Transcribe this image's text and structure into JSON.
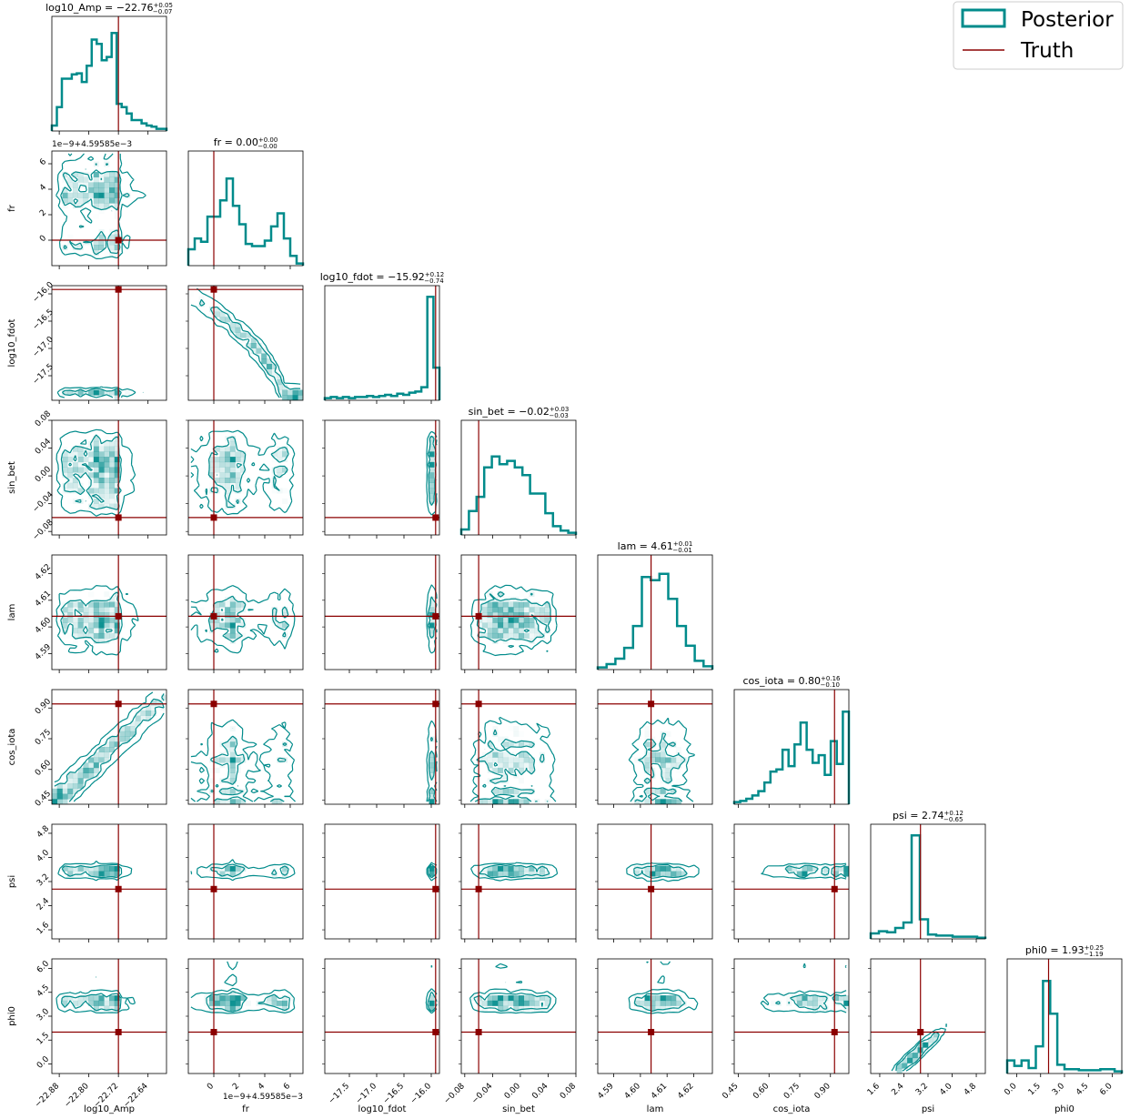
{
  "chart_data": {
    "type": "corner",
    "colors": {
      "posterior": "#008b8b",
      "truth": "#8b0000"
    },
    "legend": {
      "position": "top-right",
      "entries": [
        "Posterior",
        "Truth"
      ]
    },
    "params": [
      {
        "name": "log10_Amp",
        "title": "log10_Amp = −22.76",
        "sup": "+0.05",
        "sub": "−0.07",
        "range": [
          -22.9,
          -22.59
        ],
        "ticks": [
          -22.88,
          -22.8,
          -22.72,
          -22.64
        ],
        "tick_labels": [
          "−22.88",
          "−22.80",
          "−22.72",
          "−22.64"
        ],
        "truth": -22.72,
        "offset_text": "",
        "hist": [
          0.05,
          0.22,
          0.48,
          0.48,
          0.52,
          0.53,
          0.45,
          0.6,
          0.84,
          0.8,
          0.65,
          0.68,
          0.9,
          0.25,
          0.22,
          0.16,
          0.1,
          0.1,
          0.07,
          0.05,
          0.04,
          0.02,
          0.02
        ]
      },
      {
        "name": "fr",
        "title": "fr = 0.00",
        "sup": "+0.00",
        "sub": "−0.00",
        "range": [
          -2.0,
          7.0
        ],
        "ticks": [
          0,
          2,
          4,
          6
        ],
        "tick_labels": [
          "0",
          "2",
          "4",
          "6"
        ],
        "truth": 0.0,
        "offset_text": "1e−9+4.59585e−3",
        "hist": [
          0.15,
          0.25,
          0.22,
          0.45,
          0.45,
          0.6,
          0.8,
          0.55,
          0.38,
          0.2,
          0.18,
          0.18,
          0.23,
          0.36,
          0.48,
          0.25,
          0.09,
          0.02
        ]
      },
      {
        "name": "log10_fdot",
        "title": "log10_fdot = −15.92",
        "sup": "+0.12",
        "sub": "−0.74",
        "range": [
          -17.95,
          -15.85
        ],
        "ticks": [
          -17.5,
          -17.0,
          -16.5,
          -16.0
        ],
        "tick_labels": [
          "−17.5",
          "−17.0",
          "−16.5",
          "−16.0"
        ],
        "truth": -15.92,
        "offset_text": "",
        "hist": [
          0.02,
          0.03,
          0.02,
          0.03,
          0.02,
          0.03,
          0.03,
          0.04,
          0.03,
          0.04,
          0.05,
          0.04,
          0.06,
          0.05,
          0.07,
          0.08,
          0.12,
          0.95,
          0.3
        ]
      },
      {
        "name": "sin_bet",
        "title": "sin_bet = −0.02",
        "sup": "+0.03",
        "sub": "−0.03",
        "range": [
          -0.085,
          0.08
        ],
        "ticks": [
          -0.08,
          -0.04,
          0.0,
          0.04,
          0.08
        ],
        "tick_labels": [
          "−0.08",
          "−0.04",
          "0.00",
          "0.04",
          "0.08"
        ],
        "truth": -0.06,
        "offset_text": "",
        "hist": [
          0.05,
          0.22,
          0.35,
          0.62,
          0.72,
          0.65,
          0.68,
          0.62,
          0.55,
          0.38,
          0.38,
          0.2,
          0.08,
          0.04,
          0.02
        ]
      },
      {
        "name": "lam",
        "title": "lam = 4.61",
        "sup": "+0.01",
        "sub": "−0.01",
        "range": [
          4.584,
          4.627
        ],
        "ticks": [
          4.59,
          4.6,
          4.61,
          4.62
        ],
        "tick_labels": [
          "4.59",
          "4.60",
          "4.61",
          "4.62"
        ],
        "truth": 4.604,
        "offset_text": "",
        "hist": [
          0.02,
          0.05,
          0.1,
          0.2,
          0.4,
          0.85,
          0.82,
          0.88,
          0.65,
          0.4,
          0.22,
          0.08,
          0.03
        ]
      },
      {
        "name": "cos_iota",
        "title": "cos_iota = 0.80",
        "sup": "+0.16",
        "sub": "−0.10",
        "range": [
          0.43,
          0.99
        ],
        "ticks": [
          0.45,
          0.6,
          0.75,
          0.9
        ],
        "tick_labels": [
          "0.45",
          "0.60",
          "0.75",
          "0.90"
        ],
        "truth": 0.92,
        "offset_text": "",
        "hist": [
          0.02,
          0.03,
          0.05,
          0.08,
          0.12,
          0.2,
          0.3,
          0.32,
          0.5,
          0.35,
          0.55,
          0.75,
          0.5,
          0.38,
          0.45,
          0.27,
          0.58,
          0.37,
          0.85
        ]
      },
      {
        "name": "psi",
        "title": "psi = 2.74",
        "sup": "+0.12",
        "sub": "−0.65",
        "range": [
          1.3,
          5.1
        ],
        "ticks": [
          1.6,
          2.4,
          3.2,
          4.0,
          4.8
        ],
        "tick_labels": [
          "1.6",
          "2.4",
          "3.2",
          "4.0",
          "4.8"
        ],
        "truth": 2.95,
        "offset_text": "",
        "hist": [
          0.05,
          0.07,
          0.06,
          0.1,
          0.15,
          0.95,
          0.18,
          0.04,
          0.03,
          0.03,
          0.02,
          0.02,
          0.02,
          0.01
        ]
      },
      {
        "name": "phi0",
        "title": "phi0 = 1.93",
        "sup": "+0.25",
        "sub": "−1.19",
        "range": [
          -0.6,
          6.6
        ],
        "ticks": [
          0.0,
          1.5,
          3.0,
          4.5,
          6.0
        ],
        "tick_labels": [
          "0.0",
          "1.5",
          "3.0",
          "4.5",
          "6.0"
        ],
        "truth": 2.0,
        "offset_text": "",
        "hist": [
          0.12,
          0.07,
          0.12,
          0.05,
          0.25,
          0.85,
          0.55,
          0.08,
          0.04,
          0.04,
          0.03,
          0.03,
          0.03,
          0.04,
          0.04,
          0.02
        ]
      }
    ]
  }
}
